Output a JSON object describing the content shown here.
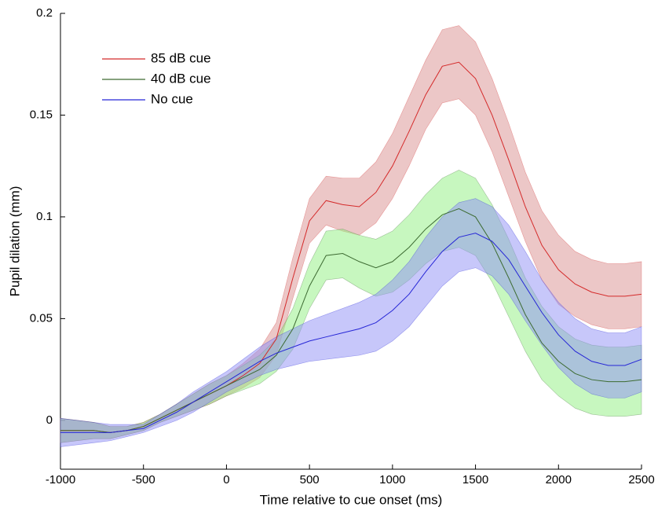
{
  "chart_data": {
    "type": "line-band",
    "xlabel": "Time relative to cue onset (ms)",
    "ylabel": "Pupil dilation (mm)",
    "x": [
      -1000,
      -900,
      -800,
      -700,
      -600,
      -500,
      -400,
      -300,
      -200,
      -100,
      0,
      100,
      200,
      300,
      400,
      500,
      600,
      700,
      800,
      900,
      1000,
      1100,
      1200,
      1300,
      1400,
      1500,
      1600,
      1700,
      1800,
      1900,
      2000,
      2100,
      2200,
      2300,
      2400,
      2500
    ],
    "xlim": [
      -1000,
      2500
    ],
    "xticks": [
      -1000,
      -500,
      0,
      500,
      1000,
      1500,
      2000,
      2500
    ],
    "ylim": [
      -0.024,
      0.2
    ],
    "yticks": [
      0,
      0.05,
      0.1,
      0.15,
      0.2
    ],
    "grid": false,
    "legend": "upper-left",
    "series": [
      {
        "name": "85 dB cue",
        "color": "#d42a2a",
        "band_color": "#d98f8f",
        "values": [
          -0.005,
          -0.005,
          -0.005,
          -0.006,
          -0.005,
          -0.003,
          0.001,
          0.005,
          0.009,
          0.013,
          0.017,
          0.022,
          0.028,
          0.04,
          0.07,
          0.098,
          0.108,
          0.106,
          0.105,
          0.112,
          0.125,
          0.142,
          0.16,
          0.174,
          0.176,
          0.168,
          0.15,
          0.128,
          0.105,
          0.086,
          0.074,
          0.067,
          0.063,
          0.061,
          0.061,
          0.062
        ],
        "errors": [
          0.006,
          0.005,
          0.004,
          0.003,
          0.002,
          0.002,
          0.002,
          0.003,
          0.004,
          0.005,
          0.005,
          0.006,
          0.007,
          0.008,
          0.01,
          0.011,
          0.012,
          0.013,
          0.014,
          0.015,
          0.016,
          0.017,
          0.017,
          0.018,
          0.018,
          0.018,
          0.018,
          0.018,
          0.017,
          0.017,
          0.017,
          0.016,
          0.016,
          0.016,
          0.016,
          0.016
        ]
      },
      {
        "name": "40 dB cue",
        "color": "#3d6b32",
        "band_color": "#8fef7f",
        "values": [
          -0.005,
          -0.005,
          -0.005,
          -0.006,
          -0.005,
          -0.003,
          0.001,
          0.005,
          0.009,
          0.013,
          0.017,
          0.021,
          0.025,
          0.032,
          0.045,
          0.066,
          0.081,
          0.082,
          0.078,
          0.075,
          0.078,
          0.085,
          0.094,
          0.101,
          0.104,
          0.1,
          0.087,
          0.07,
          0.052,
          0.038,
          0.029,
          0.023,
          0.02,
          0.019,
          0.019,
          0.02
        ],
        "errors": [
          0.006,
          0.005,
          0.004,
          0.003,
          0.002,
          0.002,
          0.002,
          0.003,
          0.004,
          0.005,
          0.005,
          0.006,
          0.007,
          0.008,
          0.01,
          0.011,
          0.012,
          0.012,
          0.013,
          0.014,
          0.015,
          0.016,
          0.017,
          0.018,
          0.019,
          0.019,
          0.019,
          0.019,
          0.018,
          0.018,
          0.017,
          0.017,
          0.017,
          0.017,
          0.017,
          0.017
        ]
      },
      {
        "name": "No cue",
        "color": "#2626d6",
        "band_color": "#8f8ff5",
        "values": [
          -0.006,
          -0.006,
          -0.006,
          -0.006,
          -0.005,
          -0.004,
          0.0,
          0.004,
          0.009,
          0.014,
          0.019,
          0.024,
          0.029,
          0.033,
          0.036,
          0.039,
          0.041,
          0.043,
          0.045,
          0.048,
          0.054,
          0.062,
          0.073,
          0.083,
          0.09,
          0.092,
          0.088,
          0.079,
          0.066,
          0.053,
          0.042,
          0.034,
          0.029,
          0.027,
          0.027,
          0.03
        ],
        "errors": [
          0.007,
          0.006,
          0.005,
          0.004,
          0.003,
          0.002,
          0.003,
          0.004,
          0.005,
          0.005,
          0.005,
          0.006,
          0.007,
          0.008,
          0.009,
          0.01,
          0.011,
          0.012,
          0.013,
          0.014,
          0.015,
          0.016,
          0.017,
          0.017,
          0.017,
          0.017,
          0.017,
          0.017,
          0.017,
          0.016,
          0.016,
          0.016,
          0.016,
          0.016,
          0.016,
          0.016
        ]
      }
    ]
  }
}
